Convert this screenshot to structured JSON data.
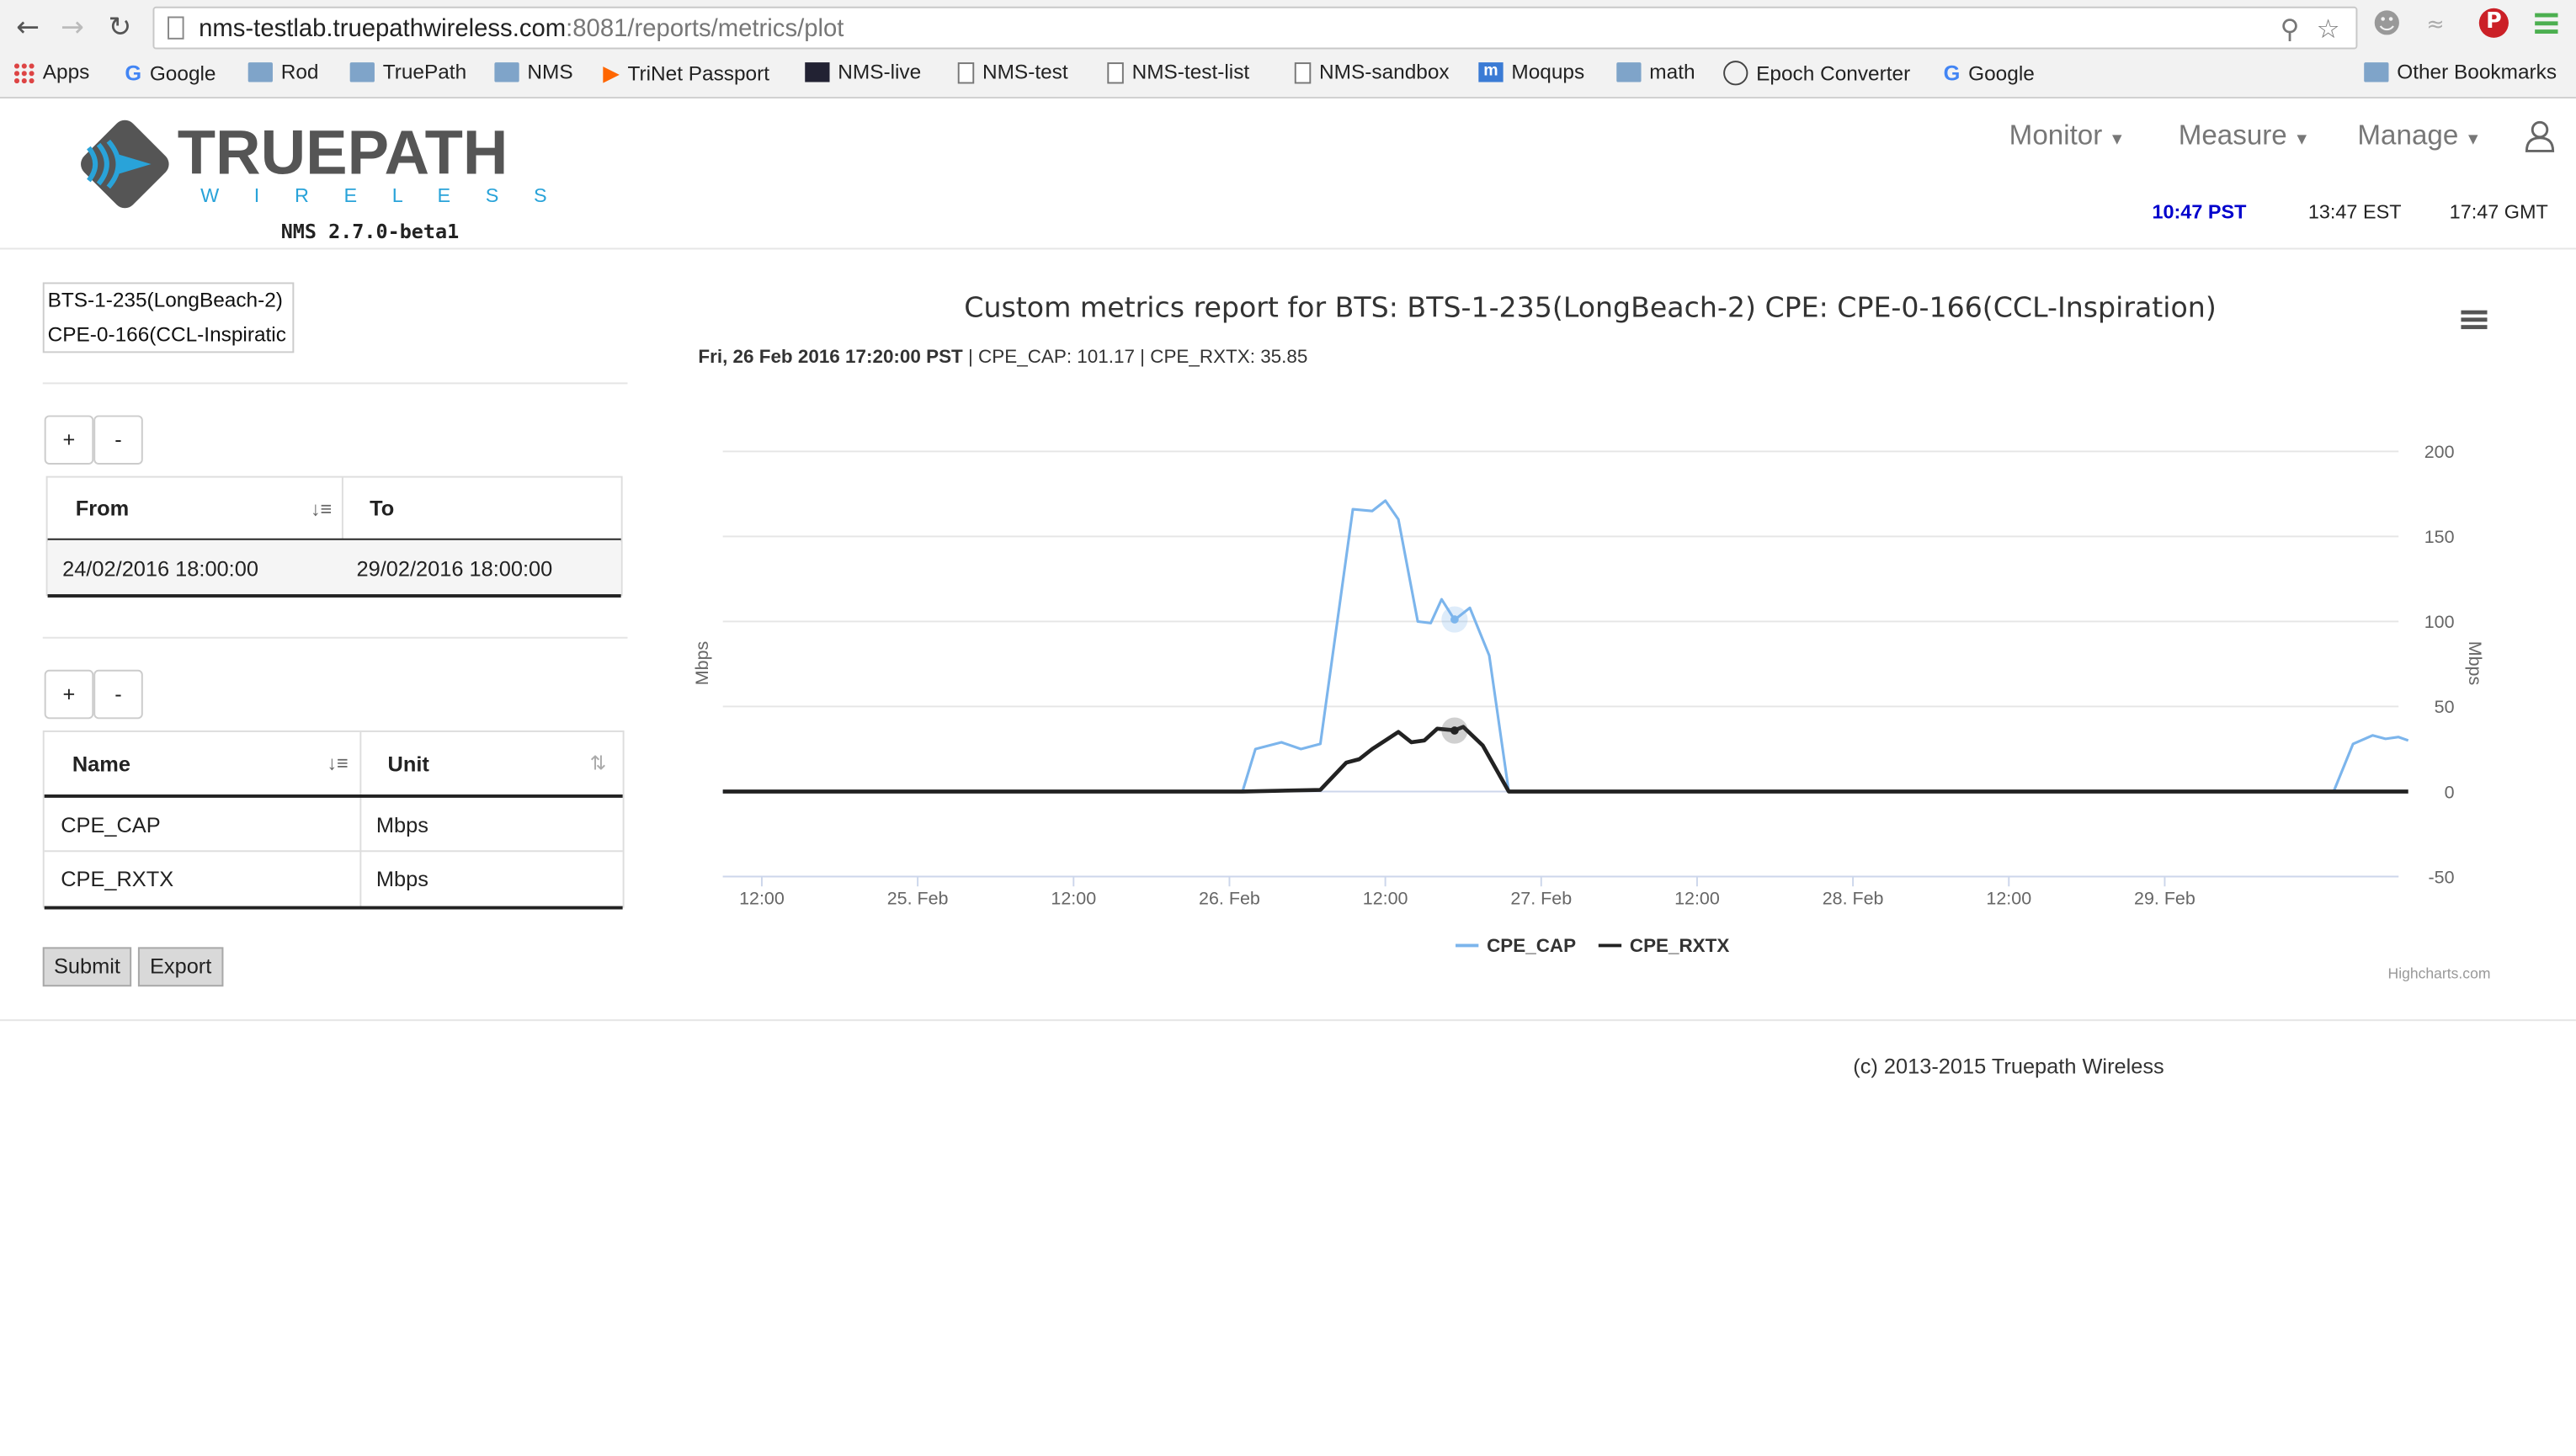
{
  "browser": {
    "url_host": "nms-testlab.truepathwireless.com",
    "url_rest": ":8081/reports/metrics/plot",
    "bookmarks": [
      "Apps",
      "Google",
      "Rod",
      "TruePath",
      "NMS",
      "TriNet Passport",
      "NMS-live",
      "NMS-test",
      "NMS-test-list",
      "NMS-sandbox",
      "Moqups",
      "math",
      "Epoch Converter",
      "Google"
    ],
    "other_bookmarks": "Other Bookmarks"
  },
  "header": {
    "logo_main": "TRUEPATH",
    "logo_sub": "W I R E L E S S",
    "version": "NMS 2.7.0-beta1",
    "menu": [
      "Monitor",
      "Measure",
      "Manage"
    ],
    "clocks": {
      "pst": "10:47 PST",
      "est": "13:47 EST",
      "gmt": "17:47 GMT"
    },
    "pst_color": "#0000cc"
  },
  "left": {
    "devices": [
      "BTS-1-235(LongBeach-2)",
      "CPE-0-166(CCL-Inspiratic"
    ],
    "plus": "+",
    "minus": "-",
    "range_headers": [
      "From",
      "To"
    ],
    "range_row": [
      "24/02/2016 18:00:00",
      "29/02/2016 18:00:00"
    ],
    "metric_headers": [
      "Name",
      "Unit"
    ],
    "metric_rows": [
      [
        "CPE_CAP",
        "Mbps"
      ],
      [
        "CPE_RXTX",
        "Mbps"
      ]
    ],
    "submit": "Submit",
    "export": "Export"
  },
  "chart": {
    "title": "Custom metrics report for BTS: BTS-1-235(LongBeach-2) CPE: CPE-0-166(CCL-Inspiration)",
    "tooltip_date": "Fri, 26 Feb 2016 17:20:00 PST",
    "tooltip_rest": " | CPE_CAP: 101.17 | CPE_RXTX: 35.85",
    "credits": "Highcharts.com"
  },
  "chart_data": {
    "type": "line",
    "ylabel": "Mbps",
    "ylabel_right": "Mbps",
    "ylim": [
      -50,
      200
    ],
    "yticks": [
      -50,
      0,
      50,
      100,
      150,
      200
    ],
    "xlim": [
      "2016-02-24T09:00",
      "2016-02-29T18:00"
    ],
    "xticks": [
      "12:00",
      "25. Feb",
      "12:00",
      "26. Feb",
      "12:00",
      "27. Feb",
      "12:00",
      "28. Feb",
      "12:00",
      "29. Feb"
    ],
    "grid": true,
    "legend": "bottom-center",
    "series": [
      {
        "name": "CPE_CAP",
        "color": "#7cb5ec",
        "points": [
          [
            "2016-02-24T09:00",
            0
          ],
          [
            "2016-02-26T01:00",
            0
          ],
          [
            "2016-02-26T02:00",
            25
          ],
          [
            "2016-02-26T04:00",
            29
          ],
          [
            "2016-02-26T05:30",
            25
          ],
          [
            "2016-02-26T07:00",
            28
          ],
          [
            "2016-02-26T09:30",
            166
          ],
          [
            "2016-02-26T11:00",
            165
          ],
          [
            "2016-02-26T12:00",
            171
          ],
          [
            "2016-02-26T13:00",
            160
          ],
          [
            "2016-02-26T14:30",
            100
          ],
          [
            "2016-02-26T15:30",
            99
          ],
          [
            "2016-02-26T16:20",
            113
          ],
          [
            "2016-02-26T17:20",
            101
          ],
          [
            "2016-02-26T18:30",
            108
          ],
          [
            "2016-02-26T20:00",
            80
          ],
          [
            "2016-02-26T21:30",
            0
          ],
          [
            "2016-02-29T13:00",
            0
          ],
          [
            "2016-02-29T14:30",
            28
          ],
          [
            "2016-02-29T16:00",
            33
          ],
          [
            "2016-02-29T17:00",
            31
          ],
          [
            "2016-02-29T18:00",
            32
          ],
          [
            "2016-02-29T18:45",
            30
          ]
        ]
      },
      {
        "name": "CPE_RXTX",
        "color": "#222222",
        "points": [
          [
            "2016-02-24T09:00",
            0
          ],
          [
            "2016-02-26T01:00",
            0
          ],
          [
            "2016-02-26T07:00",
            1
          ],
          [
            "2016-02-26T09:00",
            17
          ],
          [
            "2016-02-26T10:00",
            19
          ],
          [
            "2016-02-26T11:00",
            25
          ],
          [
            "2016-02-26T13:00",
            35
          ],
          [
            "2016-02-26T14:00",
            29
          ],
          [
            "2016-02-26T15:00",
            30
          ],
          [
            "2016-02-26T16:00",
            37
          ],
          [
            "2016-02-26T17:20",
            36
          ],
          [
            "2016-02-26T18:00",
            38
          ],
          [
            "2016-02-26T19:30",
            27
          ],
          [
            "2016-02-26T21:30",
            0
          ],
          [
            "2016-02-29T13:00",
            0
          ],
          [
            "2016-02-29T18:45",
            0
          ]
        ]
      }
    ],
    "tooltip_marker_x": "2016-02-26T17:20"
  }
}
